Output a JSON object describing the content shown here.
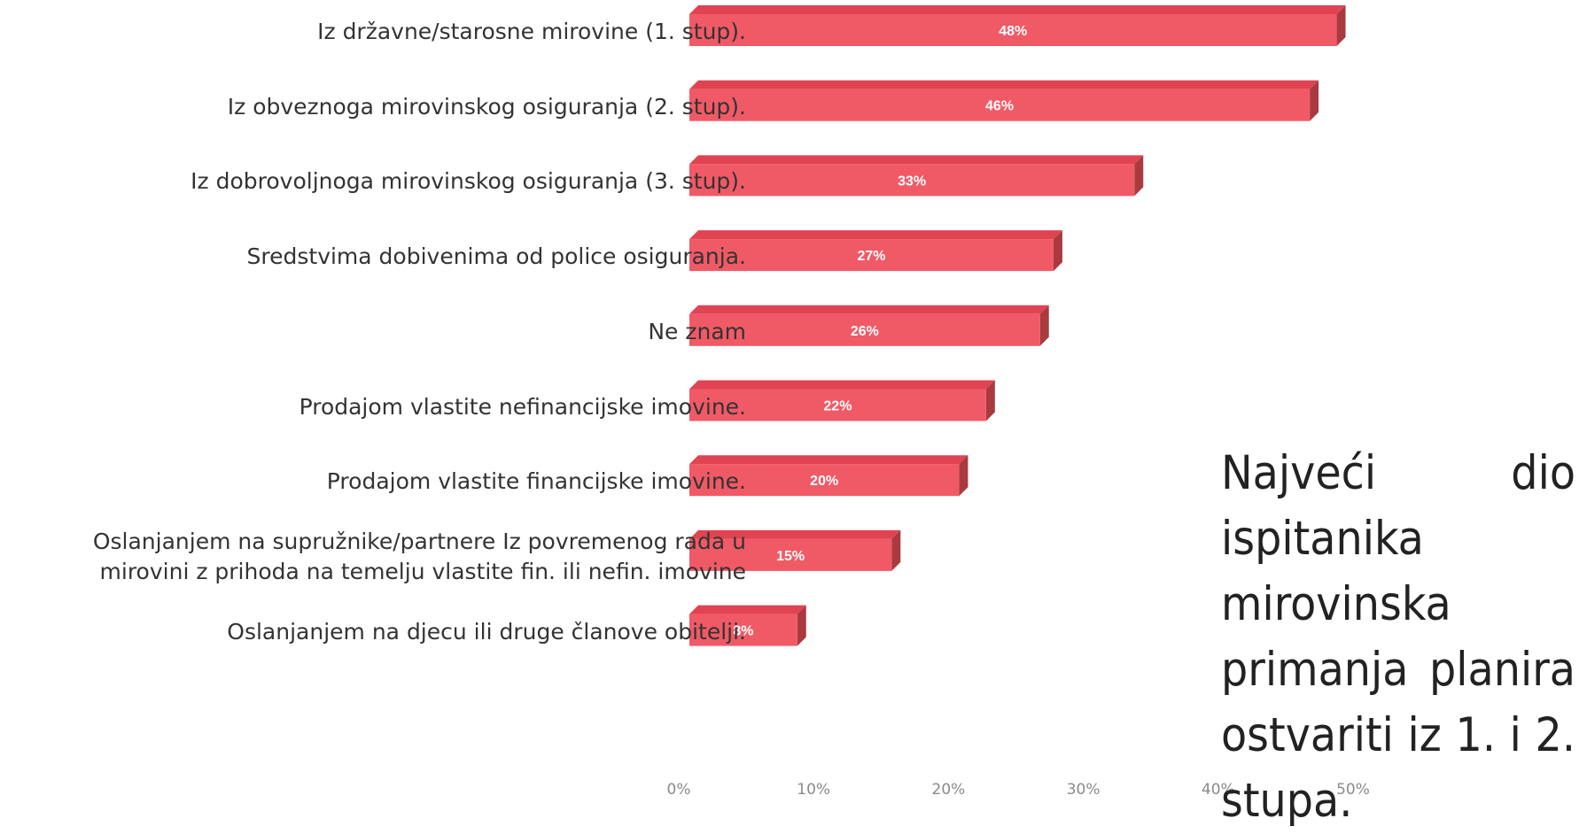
{
  "chart_data": {
    "type": "bar",
    "orientation": "horizontal",
    "style": "3d",
    "categories": [
      "Iz državne/starosne mirovine (1. stup).",
      "Iz obveznoga mirovinskog osiguranja (2. stup).",
      "Iz dobrovoljnoga mirovinskog osiguranja (3. stup).",
      "Sredstvima dobivenima od police osiguranja.",
      "Ne znam",
      "Prodajom vlastite nefinancijske imovine.",
      "Prodajom vlastite financijske imovine.",
      "Oslanjanjem na supružnike/partnere Iz povremenog rada u mirovini z prihoda na temelju vlastite fin. ili nefin. imovine",
      "Oslanjanjem na djecu ili druge članove obitelji."
    ],
    "category_lines": [
      [
        "Iz državne/starosne mirovine (1. stup)."
      ],
      [
        "Iz obveznoga mirovinskog osiguranja (2. stup)."
      ],
      [
        "Iz dobrovoljnoga mirovinskog osiguranja (3. stup)."
      ],
      [
        "Sredstvima dobivenima od police osiguranja."
      ],
      [
        "Ne znam"
      ],
      [
        "Prodajom vlastite nefinancijske imovine."
      ],
      [
        "Prodajom vlastite financijske imovine."
      ],
      [
        "Oslanjanjem na supružnike/partnere Iz povremenog rada u",
        "mirovini z prihoda na temelju vlastite fin. ili nefin. imovine"
      ],
      [
        "Oslanjanjem na djecu ili druge članove obitelji."
      ]
    ],
    "values": [
      48,
      46,
      33,
      27,
      26,
      22,
      20,
      15,
      8
    ],
    "data_labels": [
      "48%",
      "46%",
      "33%",
      "27%",
      "26%",
      "22%",
      "20%",
      "15%",
      "8%"
    ],
    "xlim": [
      0,
      50
    ],
    "x_ticks": [
      "0%",
      "10%",
      "20%",
      "30%",
      "40%",
      "50%"
    ],
    "grid": false,
    "colors": {
      "front": "#f05a66",
      "top": "#e04352",
      "side": "#a93a40",
      "label": "#ffffff",
      "tick": "#8a8a8a"
    }
  },
  "annotation": "Najveći dio ispitanika mirovinska primanja planira ostvariti iz 1. i 2. stupa."
}
